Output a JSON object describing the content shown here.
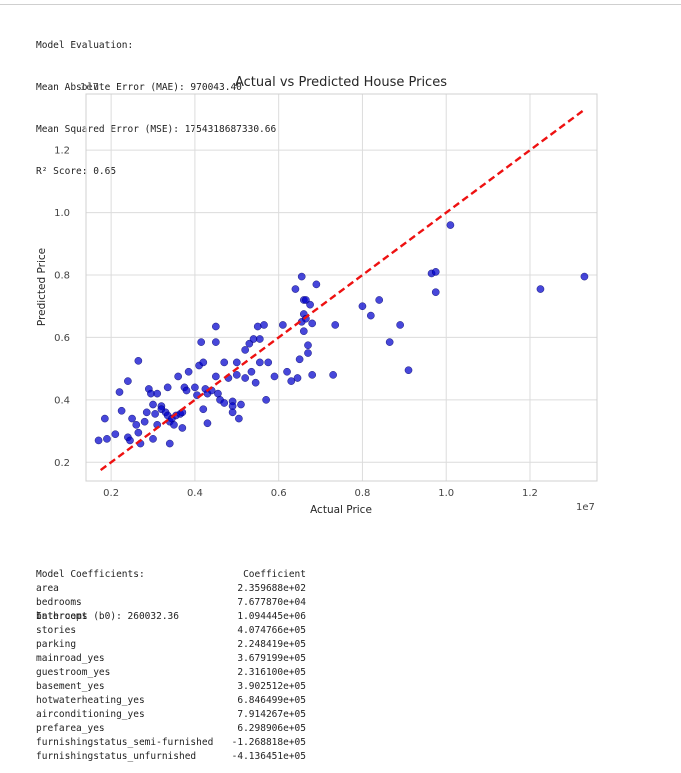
{
  "evaluation": {
    "heading": "Model Evaluation:",
    "mae_line": "Mean Absolute Error (MAE): 970043.40",
    "mse_line": "Mean Squared Error (MSE): 1754318687330.66",
    "r2_line": "R² Score: 0.65"
  },
  "coefficients": {
    "heading": "Model Coefficients:",
    "intercept_line": "Intercept (b0): 260032.36",
    "column_header": "Coefficient",
    "rows": [
      {
        "name": "area",
        "value": "2.359688e+02"
      },
      {
        "name": "bedrooms",
        "value": "7.677870e+04"
      },
      {
        "name": "bathrooms",
        "value": "1.094445e+06"
      },
      {
        "name": "stories",
        "value": "4.074766e+05"
      },
      {
        "name": "parking",
        "value": "2.248419e+05"
      },
      {
        "name": "mainroad_yes",
        "value": "3.679199e+05"
      },
      {
        "name": "guestroom_yes",
        "value": "2.316100e+05"
      },
      {
        "name": "basement_yes",
        "value": "3.902512e+05"
      },
      {
        "name": "hotwaterheating_yes",
        "value": "6.846499e+05"
      },
      {
        "name": "airconditioning_yes",
        "value": "7.914267e+05"
      },
      {
        "name": "prefarea_yes",
        "value": "6.298906e+05"
      },
      {
        "name": "furnishingstatus_semi-furnished",
        "value": "-1.268818e+05"
      },
      {
        "name": "furnishingstatus_unfurnished",
        "value": "-4.136451e+05"
      }
    ]
  },
  "chart_data": {
    "type": "scatter",
    "title": "Actual vs Predicted House Prices",
    "xlabel": "Actual Price",
    "ylabel": "Predicted Price",
    "x_offset_label": "1e7",
    "y_offset_label": "1e7",
    "xlim": [
      0.14,
      1.36
    ],
    "ylim": [
      0.14,
      1.38
    ],
    "xticks": [
      0.2,
      0.4,
      0.6,
      0.8,
      1.0,
      1.2
    ],
    "yticks": [
      0.2,
      0.4,
      0.6,
      0.8,
      1.0,
      1.2
    ],
    "xtick_labels": [
      "0.2",
      "0.4",
      "0.6",
      "0.8",
      "1.0",
      "1.2"
    ],
    "ytick_labels": [
      "0.2",
      "0.4",
      "0.6",
      "0.8",
      "1.0",
      "1.2"
    ],
    "grid": true,
    "point_color": "#0000cc",
    "reference_line_color": "#ee1111",
    "reference_line": {
      "x": [
        0.175,
        1.33
      ],
      "y": [
        0.175,
        1.33
      ]
    },
    "points": [
      [
        0.17,
        0.27
      ],
      [
        0.185,
        0.34
      ],
      [
        0.19,
        0.275
      ],
      [
        0.21,
        0.29
      ],
      [
        0.22,
        0.425
      ],
      [
        0.225,
        0.365
      ],
      [
        0.24,
        0.46
      ],
      [
        0.24,
        0.28
      ],
      [
        0.245,
        0.27
      ],
      [
        0.25,
        0.34
      ],
      [
        0.26,
        0.32
      ],
      [
        0.265,
        0.525
      ],
      [
        0.265,
        0.295
      ],
      [
        0.27,
        0.26
      ],
      [
        0.28,
        0.33
      ],
      [
        0.285,
        0.36
      ],
      [
        0.29,
        0.435
      ],
      [
        0.295,
        0.42
      ],
      [
        0.3,
        0.385
      ],
      [
        0.3,
        0.275
      ],
      [
        0.305,
        0.355
      ],
      [
        0.31,
        0.32
      ],
      [
        0.31,
        0.42
      ],
      [
        0.32,
        0.38
      ],
      [
        0.32,
        0.37
      ],
      [
        0.33,
        0.36
      ],
      [
        0.335,
        0.44
      ],
      [
        0.335,
        0.35
      ],
      [
        0.34,
        0.26
      ],
      [
        0.34,
        0.33
      ],
      [
        0.345,
        0.34
      ],
      [
        0.35,
        0.32
      ],
      [
        0.355,
        0.35
      ],
      [
        0.36,
        0.475
      ],
      [
        0.365,
        0.355
      ],
      [
        0.37,
        0.31
      ],
      [
        0.37,
        0.36
      ],
      [
        0.375,
        0.44
      ],
      [
        0.38,
        0.43
      ],
      [
        0.385,
        0.49
      ],
      [
        0.4,
        0.44
      ],
      [
        0.405,
        0.415
      ],
      [
        0.41,
        0.51
      ],
      [
        0.415,
        0.585
      ],
      [
        0.42,
        0.52
      ],
      [
        0.42,
        0.37
      ],
      [
        0.425,
        0.435
      ],
      [
        0.43,
        0.42
      ],
      [
        0.43,
        0.325
      ],
      [
        0.44,
        0.43
      ],
      [
        0.45,
        0.635
      ],
      [
        0.45,
        0.585
      ],
      [
        0.45,
        0.475
      ],
      [
        0.455,
        0.42
      ],
      [
        0.46,
        0.4
      ],
      [
        0.47,
        0.39
      ],
      [
        0.47,
        0.52
      ],
      [
        0.48,
        0.47
      ],
      [
        0.49,
        0.395
      ],
      [
        0.49,
        0.38
      ],
      [
        0.49,
        0.36
      ],
      [
        0.5,
        0.48
      ],
      [
        0.5,
        0.52
      ],
      [
        0.505,
        0.34
      ],
      [
        0.51,
        0.385
      ],
      [
        0.52,
        0.56
      ],
      [
        0.52,
        0.47
      ],
      [
        0.53,
        0.58
      ],
      [
        0.535,
        0.49
      ],
      [
        0.54,
        0.595
      ],
      [
        0.545,
        0.455
      ],
      [
        0.55,
        0.635
      ],
      [
        0.555,
        0.595
      ],
      [
        0.555,
        0.52
      ],
      [
        0.565,
        0.64
      ],
      [
        0.57,
        0.4
      ],
      [
        0.575,
        0.52
      ],
      [
        0.59,
        0.475
      ],
      [
        0.61,
        0.64
      ],
      [
        0.62,
        0.49
      ],
      [
        0.63,
        0.46
      ],
      [
        0.64,
        0.755
      ],
      [
        0.645,
        0.47
      ],
      [
        0.65,
        0.53
      ],
      [
        0.655,
        0.795
      ],
      [
        0.655,
        0.65
      ],
      [
        0.66,
        0.72
      ],
      [
        0.66,
        0.675
      ],
      [
        0.66,
        0.62
      ],
      [
        0.665,
        0.72
      ],
      [
        0.665,
        0.66
      ],
      [
        0.67,
        0.55
      ],
      [
        0.67,
        0.575
      ],
      [
        0.675,
        0.705
      ],
      [
        0.68,
        0.645
      ],
      [
        0.68,
        0.48
      ],
      [
        0.69,
        0.77
      ],
      [
        0.73,
        0.48
      ],
      [
        0.735,
        0.64
      ],
      [
        0.8,
        0.7
      ],
      [
        0.82,
        0.67
      ],
      [
        0.84,
        0.72
      ],
      [
        0.865,
        0.585
      ],
      [
        0.89,
        0.64
      ],
      [
        0.91,
        0.495
      ],
      [
        0.965,
        0.805
      ],
      [
        0.975,
        0.81
      ],
      [
        0.975,
        0.745
      ],
      [
        1.01,
        0.96
      ],
      [
        1.225,
        0.755
      ],
      [
        1.33,
        0.795
      ]
    ]
  }
}
